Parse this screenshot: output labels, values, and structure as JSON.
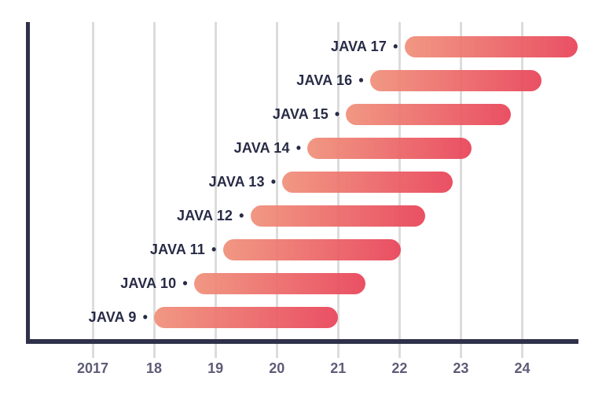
{
  "chart_data": {
    "type": "bar",
    "subtype": "horizontal-gantt-range",
    "title": "",
    "xlabel": "",
    "ylabel": "",
    "legend": "none",
    "grid": "vertical-gridlines-only",
    "xlim": [
      2015.95,
      2024.95
    ],
    "bullet_char": "•",
    "categories": [
      "JAVA 17",
      "JAVA 16",
      "JAVA 15",
      "JAVA 14",
      "JAVA 13",
      "JAVA 12",
      "JAVA 11",
      "JAVA 10",
      "JAVA 9"
    ],
    "rows": [
      {
        "label": "JAVA 17",
        "start_year": 2022.08,
        "end_year": 2024.9
      },
      {
        "label": "JAVA 16",
        "start_year": 2021.52,
        "end_year": 2024.31
      },
      {
        "label": "JAVA 15",
        "start_year": 2021.13,
        "end_year": 2023.82
      },
      {
        "label": "JAVA 14",
        "start_year": 2020.5,
        "end_year": 2023.18
      },
      {
        "label": "JAVA 13",
        "start_year": 2020.09,
        "end_year": 2022.87
      },
      {
        "label": "JAVA 12",
        "start_year": 2019.57,
        "end_year": 2022.42
      },
      {
        "label": "JAVA 11",
        "start_year": 2019.12,
        "end_year": 2022.02
      },
      {
        "label": "JAVA 10",
        "start_year": 2018.65,
        "end_year": 2021.45
      },
      {
        "label": "JAVA 9",
        "start_year": 2018.0,
        "end_year": 2021.0
      }
    ],
    "x_ticks": [
      {
        "label": "2017",
        "year": 2017
      },
      {
        "label": "18",
        "year": 2018
      },
      {
        "label": "19",
        "year": 2019
      },
      {
        "label": "20",
        "year": 2020
      },
      {
        "label": "21",
        "year": 2021
      },
      {
        "label": "22",
        "year": 2022
      },
      {
        "label": "23",
        "year": 2023
      },
      {
        "label": "24",
        "year": 2024
      }
    ],
    "colors": {
      "bar_gradient_left": "#F0907A",
      "bar_gradient_right": "#E84358",
      "row_label": "#272B46",
      "axis": "#2F3149",
      "gridline": "#DCDCDC",
      "tick_label": "#5E5C77"
    }
  }
}
